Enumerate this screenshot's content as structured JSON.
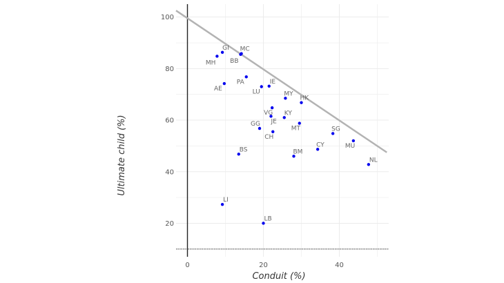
{
  "chart_data": {
    "type": "scatter",
    "title": "",
    "xlabel": "Conduit (%)",
    "ylabel": "Ultimate child (%)",
    "xlim": [
      -3,
      53
    ],
    "ylim": [
      7,
      105
    ],
    "x_ticks": [
      0,
      20,
      40
    ],
    "y_ticks": [
      20,
      40,
      60,
      80,
      100
    ],
    "grid": true,
    "legend": "none",
    "colors": {
      "point": "#0000ee",
      "line": "#b3b3b3",
      "grid": "#ebebeb",
      "axis": "#222222",
      "baseline": "#555555"
    },
    "reference_line": {
      "x": [
        -3,
        52.5
      ],
      "y": [
        102.5,
        47.5
      ]
    },
    "baseline_y": 10,
    "points": [
      {
        "label": "GI",
        "x": 9.2,
        "y": 86.3
      },
      {
        "label": "MC",
        "x": 14.2,
        "y": 85.8
      },
      {
        "label": "MH",
        "x": 7.8,
        "y": 84.8
      },
      {
        "label": "BB",
        "x": 14.0,
        "y": 85.5
      },
      {
        "label": "PA",
        "x": 15.5,
        "y": 76.8
      },
      {
        "label": "AE",
        "x": 9.7,
        "y": 74.2
      },
      {
        "label": "LU",
        "x": 19.5,
        "y": 73.0
      },
      {
        "label": "IE",
        "x": 21.5,
        "y": 73.2
      },
      {
        "label": "MY",
        "x": 25.8,
        "y": 68.5
      },
      {
        "label": "HK",
        "x": 30.0,
        "y": 66.8
      },
      {
        "label": "VG",
        "x": 22.3,
        "y": 64.8
      },
      {
        "label": "JE",
        "x": 22.0,
        "y": 61.5
      },
      {
        "label": "KY",
        "x": 25.5,
        "y": 61.0
      },
      {
        "label": "MT",
        "x": 29.5,
        "y": 58.8
      },
      {
        "label": "GG",
        "x": 19.0,
        "y": 56.8
      },
      {
        "label": "CH",
        "x": 22.5,
        "y": 55.5
      },
      {
        "label": "SG",
        "x": 38.3,
        "y": 54.8
      },
      {
        "label": "MU",
        "x": 43.7,
        "y": 52.0
      },
      {
        "label": "CY",
        "x": 34.3,
        "y": 48.7
      },
      {
        "label": "BS",
        "x": 13.5,
        "y": 46.8
      },
      {
        "label": "BM",
        "x": 28.0,
        "y": 46.0
      },
      {
        "label": "NL",
        "x": 47.7,
        "y": 42.8
      },
      {
        "label": "LI",
        "x": 9.2,
        "y": 27.3
      },
      {
        "label": "LB",
        "x": 20.0,
        "y": 20.0
      }
    ]
  }
}
